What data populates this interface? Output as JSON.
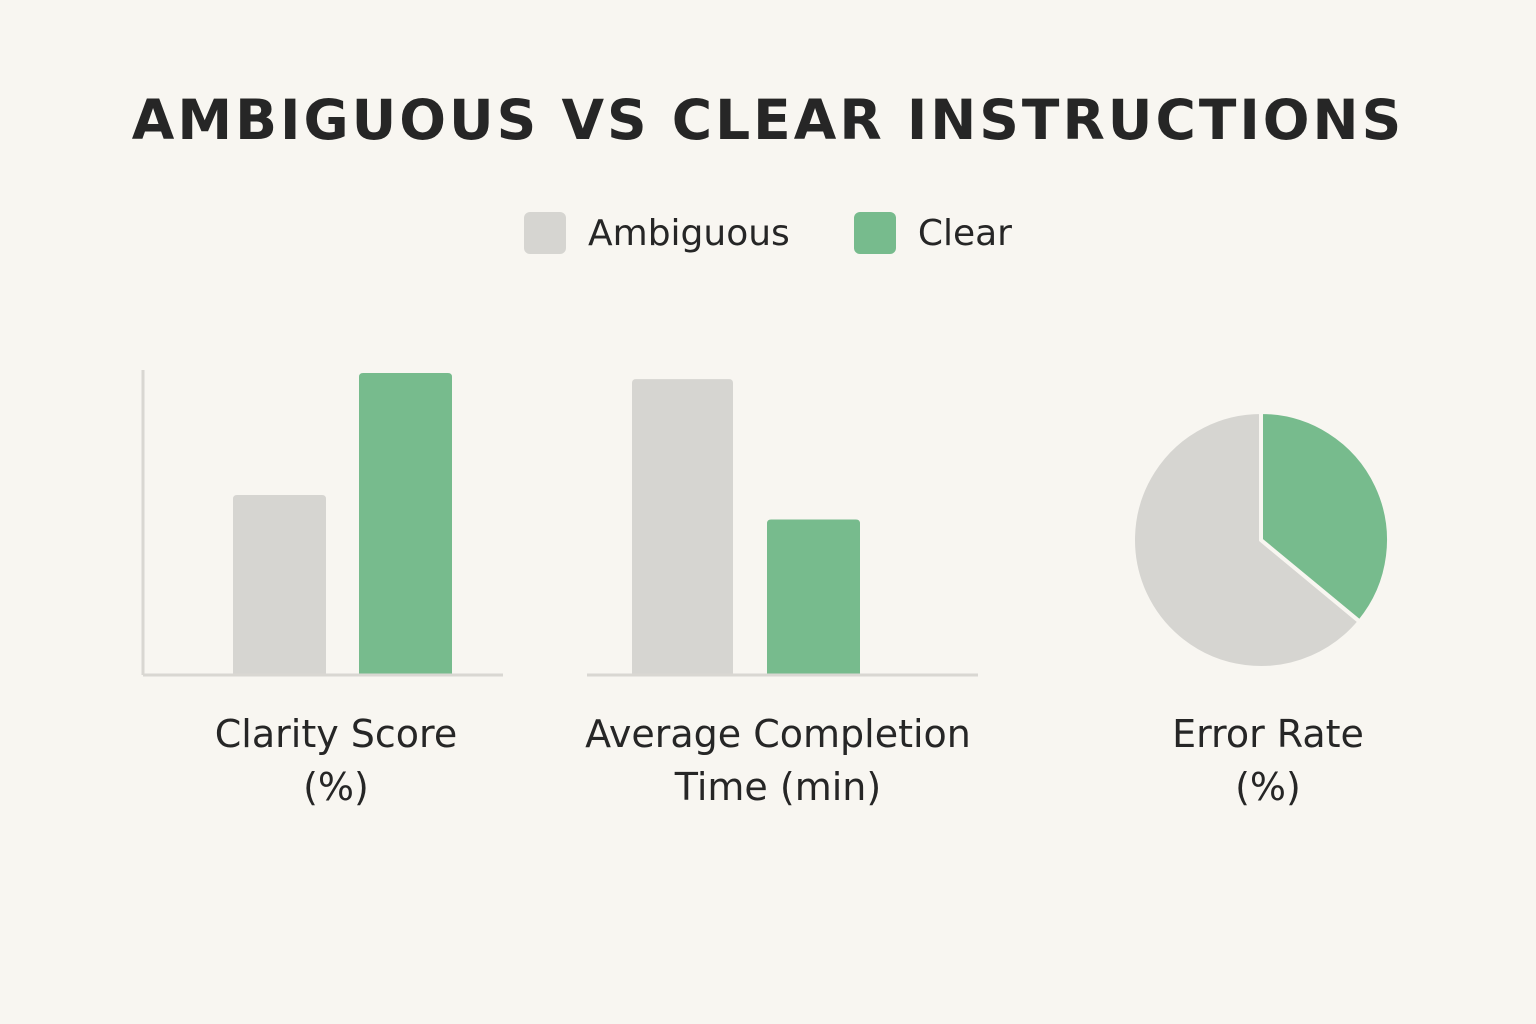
{
  "title": "AMBIGUOUS VS CLEAR INSTRUCTIONS",
  "colors": {
    "background": "#f8f6f1",
    "ambiguous": "#d6d5d1",
    "clear": "#77bb8d",
    "axis": "#d9d7d2"
  },
  "legend": [
    {
      "label": "Ambiguous",
      "color": "#d6d5d1"
    },
    {
      "label": "Clear",
      "color": "#77bb8d"
    }
  ],
  "chart_data": [
    {
      "type": "bar",
      "label_lines": [
        "Clarity Score",
        "(%)"
      ],
      "categories": [
        "Ambiguous",
        "Clear"
      ],
      "values": [
        59,
        99
      ],
      "ylim": [
        0,
        100
      ],
      "axes": "left-bottom"
    },
    {
      "type": "bar",
      "label_lines": [
        "Average Completion",
        "Time (min)"
      ],
      "categories": [
        "Ambiguous",
        "Clear"
      ],
      "values": [
        97,
        51
      ],
      "ylim": [
        0,
        100
      ],
      "axes": "bottom"
    },
    {
      "type": "pie",
      "label_lines": [
        "Error Rate",
        "(%)"
      ],
      "categories": [
        "Ambiguous",
        "Clear"
      ],
      "values": [
        64,
        36
      ]
    }
  ]
}
